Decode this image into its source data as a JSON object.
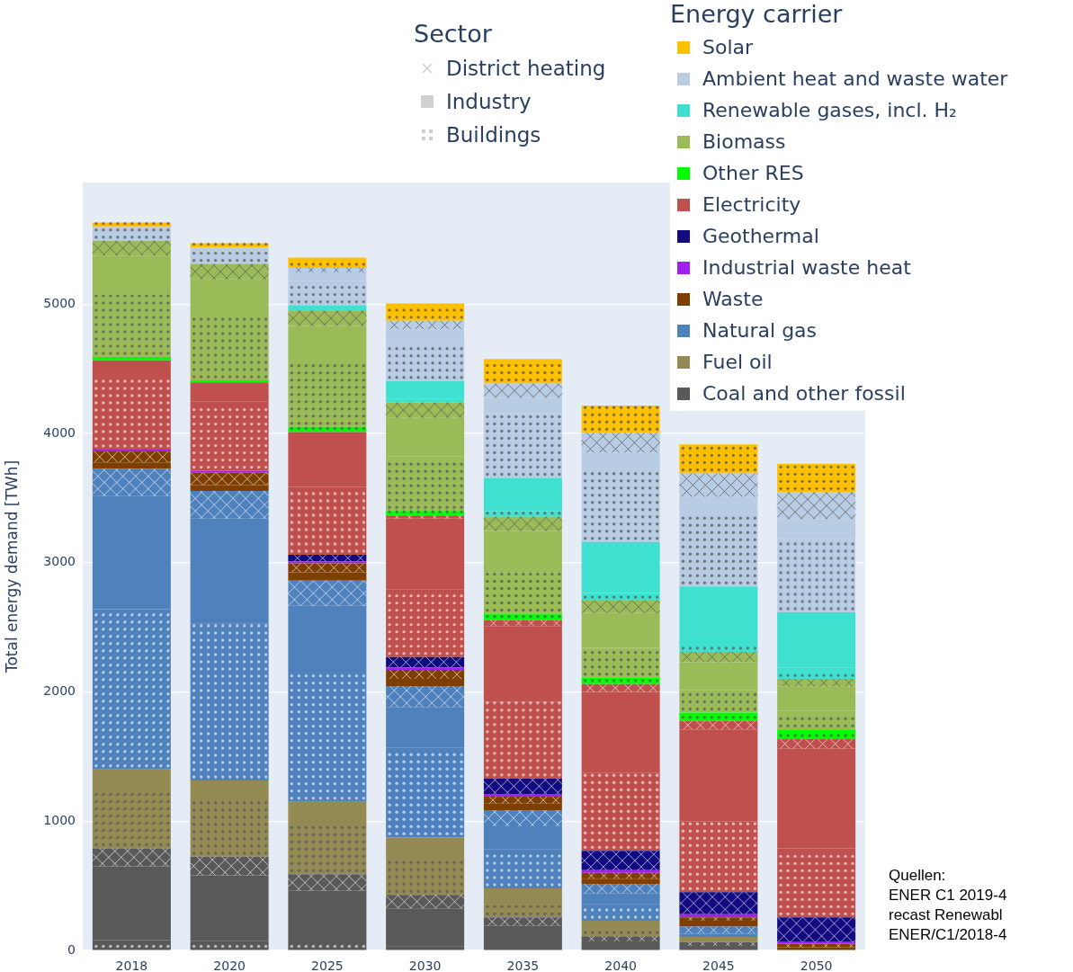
{
  "chart_data": {
    "type": "bar",
    "stacked": true,
    "ylabel": "Total energy demand [TWh]",
    "legend_title": "Energy carrier",
    "legend": "top right",
    "grid": "y",
    "categories": [
      "2018",
      "2020",
      "2025",
      "2030",
      "2035",
      "2040",
      "2045",
      "2050"
    ],
    "ylim": [
      0,
      5940
    ],
    "yticks": [
      0,
      1000,
      2000,
      3000,
      4000,
      5000
    ],
    "annotations": [
      "Sector",
      "Quellen:",
      "ENER C1 2019-4",
      "recast Renewabl",
      "ENER/C1/2018-4"
    ],
    "series": [
      {
        "name": "Coal and other fossil",
        "color": "#595959",
        "marker": "circle",
        "values": [
          80,
          75,
          55,
          30,
          null,
          null,
          35,
          null
        ]
      },
      {
        "color": "#595959",
        "marker": "none",
        "values": [
          570,
          505,
          405,
          295,
          190,
          70,
          null,
          null
        ]
      },
      {
        "color": "#595959",
        "marker": "cross",
        "values": [
          140,
          145,
          130,
          105,
          65,
          40,
          30,
          null
        ]
      },
      {
        "name": "Fuel oil",
        "color": "#948a54",
        "marker": "circle",
        "values": [
          455,
          450,
          390,
          300,
          135,
          70,
          25,
          null
        ]
      },
      {
        "color": "#948a54",
        "marker": "none",
        "values": [
          155,
          140,
          170,
          145,
          90,
          50,
          15,
          null
        ]
      },
      {
        "name": "Natural gas",
        "color": "#4f81bd",
        "marker": "circle",
        "values": [
          1240,
          1215,
          1000,
          695,
          305,
          130,
          25,
          null
        ]
      },
      {
        "color": "#4f81bd",
        "marker": "none",
        "values": [
          875,
          810,
          515,
          310,
          175,
          80,
          null,
          null
        ]
      },
      {
        "color": "#4f81bd",
        "marker": "cross",
        "values": [
          210,
          215,
          195,
          165,
          125,
          75,
          55,
          null
        ]
      },
      {
        "name": "Waste",
        "color": "#7f3f00",
        "marker": "none",
        "values": [
          50,
          45,
          65,
          55,
          50,
          40,
          45,
          25
        ]
      },
      {
        "color": "#7f3f00",
        "marker": "cross",
        "values": [
          85,
          95,
          70,
          70,
          55,
          45,
          25,
          25
        ]
      },
      {
        "name": "Industrial waste heat",
        "color": "#a020f0",
        "marker": "none",
        "values": [
          15,
          15,
          15,
          20,
          20,
          20,
          25,
          15
        ]
      },
      {
        "name": "Geothermal",
        "color": "#120a80",
        "marker": "cross",
        "values": [
          null,
          null,
          50,
          80,
          120,
          150,
          170,
          190
        ]
      },
      {
        "name": "Electricity",
        "color": "#c0504d",
        "marker": "circle",
        "values": [
          555,
          535,
          525,
          525,
          595,
          605,
          550,
          535
        ]
      },
      {
        "color": "#c0504d",
        "marker": "none",
        "values": [
          135,
          150,
          425,
          545,
          585,
          625,
          710,
          770
        ]
      },
      {
        "color": "#c0504d",
        "marker": "cross",
        "values": [
          null,
          null,
          null,
          25,
          45,
          60,
          65,
          75
        ]
      },
      {
        "name": "Other RES",
        "color": "#00ff00",
        "marker": "circle",
        "values": [
          25,
          15,
          40,
          35,
          50,
          50,
          65,
          75
        ]
      },
      {
        "name": "Biomass",
        "color": "#9bbb59",
        "marker": "circle",
        "values": [
          515,
          515,
          485,
          420,
          315,
          230,
          175,
          145
        ]
      },
      {
        "color": "#9bbb59",
        "marker": "none",
        "values": [
          270,
          265,
          295,
          300,
          325,
          270,
          215,
          185
        ]
      },
      {
        "color": "#9bbb59",
        "marker": "cross",
        "values": [
          115,
          120,
          120,
          120,
          110,
          95,
          80,
          60
        ]
      },
      {
        "name": "Renewable gases, incl. H₂",
        "color": "#40e0d0",
        "marker": "circle",
        "values": [
          null,
          null,
          null,
          25,
          45,
          60,
          75,
          85
        ]
      },
      {
        "color": "#40e0d0",
        "marker": "none",
        "values": [
          null,
          null,
          40,
          140,
          255,
          395,
          430,
          430
        ]
      },
      {
        "name": "Ambient heat and waste water",
        "color": "#b8cce4",
        "marker": "circle",
        "values": [
          105,
          125,
          190,
          305,
          500,
          540,
          545,
          565
        ]
      },
      {
        "color": "#b8cce4",
        "marker": "none",
        "values": [
          null,
          null,
          65,
          95,
          120,
          150,
          150,
          155
        ]
      },
      {
        "color": "#b8cce4",
        "marker": "cross",
        "values": [
          null,
          null,
          35,
          65,
          110,
          155,
          180,
          210
        ]
      },
      {
        "name": "Solar",
        "color": "#ffc000",
        "marker": "circle",
        "values": [
          35,
          35,
          80,
          135,
          190,
          210,
          225,
          220
        ]
      },
      {
        "name": "District heating",
        "color": "#d0d0d0",
        "marker": "cross",
        "values": [
          null,
          null,
          null,
          null,
          null,
          null,
          null,
          null
        ]
      },
      {
        "name": "Industry",
        "color": "#d0d0d0",
        "marker": "none",
        "values": [
          null,
          null,
          null,
          null,
          null,
          null,
          null,
          null
        ]
      },
      {
        "name": "Buildings",
        "color": "#d0d0d0",
        "marker": "circle",
        "values": [
          null,
          null,
          null,
          null,
          null,
          null,
          null,
          null
        ]
      }
    ]
  }
}
